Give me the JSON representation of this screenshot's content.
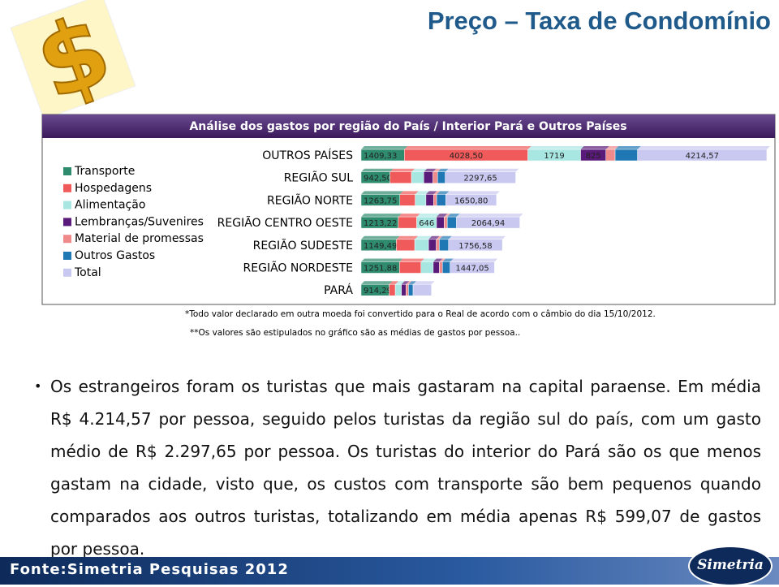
{
  "header": {
    "title": "Preço – Taxa de Condomínio"
  },
  "chart_data": {
    "type": "bar",
    "orientation": "horizontal",
    "stacked": true,
    "title": "Análise dos gastos por região do País / Interior Pará e Outros Países",
    "categories": [
      "OUTROS PAÍSES",
      "REGIÃO SUL",
      "REGIÃO NORTE",
      "REGIÃO CENTRO OESTE",
      "REGIÃO SUDESTE",
      "REGIÃO NORDESTE",
      "PARÁ"
    ],
    "series": [
      {
        "name": "Transporte",
        "color": "#2e8b6e",
        "values": [
          1409.33,
          942.5,
          1263.75,
          1213.22,
          1149.49,
          1251.88,
          914.29
        ],
        "value_labels": [
          "1409,33",
          "942,50",
          "1263,75",
          "1213,22",
          "1149,49",
          "1251,88",
          "914,29"
        ]
      },
      {
        "name": "Hospedagens",
        "color": "#f05a5a",
        "values": [
          4028.5,
          700,
          500,
          600,
          600,
          700,
          200
        ],
        "value_labels": [
          "4028,50",
          null,
          null,
          null,
          null,
          null,
          null
        ]
      },
      {
        "name": "Alimentação",
        "color": "#a8e6e2",
        "values": [
          1719,
          400,
          350,
          646,
          450,
          400,
          200
        ],
        "value_labels": [
          "1719",
          null,
          null,
          "646",
          null,
          null,
          null
        ]
      },
      {
        "name": "Lembranças/Suvenires",
        "color": "#5a1a7a",
        "values": [
          825,
          300,
          250,
          250,
          250,
          200,
          150
        ],
        "value_labels": [
          "825",
          null,
          null,
          null,
          null,
          null,
          null
        ]
      },
      {
        "name": "Material de promessas",
        "color": "#f08a8a",
        "values": [
          300,
          150,
          100,
          100,
          100,
          100,
          80
        ]
      },
      {
        "name": "Outros Gastos",
        "color": "#1f77b4",
        "values": [
          730,
          250,
          300,
          300,
          300,
          250,
          150
        ]
      },
      {
        "name": "Total",
        "color": "#c8c8f0",
        "values": [
          4214.57,
          2297.65,
          1650.8,
          2064.94,
          1756.58,
          1447.05,
          599.07
        ],
        "value_labels": [
          "4214,57",
          "2297,65",
          "1650,80",
          "2064,94",
          "1756,58",
          "1447,05",
          null
        ]
      }
    ],
    "notes": [
      "*Todo valor declarado em outra moeda foi convertido para o Real de acordo com o câmbio do dia 15/10/2012.",
      "**Os valores são estipulados no gráfico são as médias de gastos por pessoa.."
    ]
  },
  "body": {
    "text": "Os estrangeiros foram os turistas que mais gastaram na capital paraense. Em média R$ 4.214,57 por pessoa, seguido pelos turistas da região sul do país, com um gasto médio de R$ 2.297,65 por pessoa. Os turistas do interior do Pará são os que menos gastam na cidade, visto que, os custos com transporte são bem pequenos quando comparados aos outros turistas, totalizando em média apenas R$ 599,07 de gastos por pessoa."
  },
  "footer": {
    "source": "Fonte:Simetria Pesquisas 2012",
    "logo": "Simetria"
  }
}
